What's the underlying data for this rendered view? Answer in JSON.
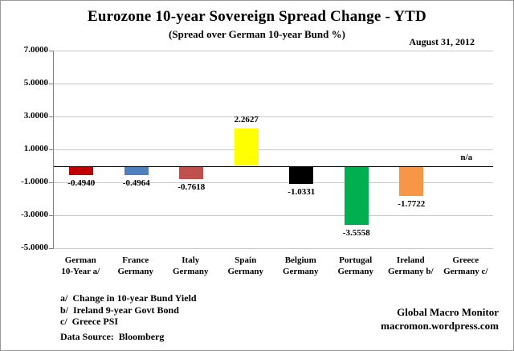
{
  "header": {
    "title": "Eurozone 10-year Sovereign Spread Change - YTD",
    "subtitle": "(Spread over German 10-year Bund %)",
    "date": "August 31, 2012"
  },
  "chart_data": {
    "type": "bar",
    "title": "Eurozone 10-year Sovereign Spread Change - YTD",
    "subtitle": "(Spread over German 10-year Bund %)",
    "categories": [
      [
        "German",
        "10-Year a/"
      ],
      [
        "France",
        "Germany"
      ],
      [
        "Italy",
        "Germany"
      ],
      [
        "Spain",
        "Germany"
      ],
      [
        "Belgium",
        "Germany"
      ],
      [
        "Portugal",
        "Germany"
      ],
      [
        "Ireland",
        "Germany b/"
      ],
      [
        "Greece",
        "Germany c/"
      ]
    ],
    "values": [
      -0.494,
      -0.4964,
      -0.7618,
      2.2627,
      -1.0331,
      -3.5558,
      -1.7722,
      null
    ],
    "value_labels": [
      "-0.4940",
      "-0.4964",
      "-0.7618",
      "2.2627",
      "-1.0331",
      "-3.5558",
      "-1.7722",
      "n/a"
    ],
    "colors": [
      "#c00000",
      "#4f81bd",
      "#c0504d",
      "#ffff00",
      "#000000",
      "#00b050",
      "#f79646",
      null
    ],
    "y_ticks": [
      {
        "value": 7,
        "label": "7.0000"
      },
      {
        "value": 5,
        "label": "5.0000"
      },
      {
        "value": 3,
        "label": "3.0000"
      },
      {
        "value": 1,
        "label": "1.0000"
      },
      {
        "value": -1,
        "label": "-1.0000"
      },
      {
        "value": -3,
        "label": "-3.0000"
      },
      {
        "value": -5,
        "label": "-5.0000"
      }
    ],
    "ylim": [
      -5,
      7
    ],
    "grid": true,
    "legend": "none"
  },
  "footnotes": {
    "a": "a/  Change in 10-year Bund Yield",
    "b": "b/  Ireland 9-year Govt Bond",
    "c": "c/  Greece PSI",
    "source": "Data Source:  Bloomberg"
  },
  "branding": {
    "line1": "Global Macro Monitor",
    "line2": "macromon.wordpress.com"
  }
}
